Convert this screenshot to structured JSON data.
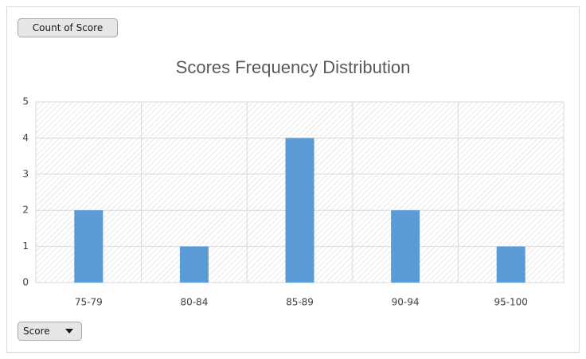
{
  "pivot_buttons": {
    "value_field": "Count of Score",
    "axis_field": "Score"
  },
  "chart_data": {
    "type": "bar",
    "title": "Scores Frequency Distribution",
    "categories": [
      "75-79",
      "80-84",
      "85-89",
      "90-94",
      "95-100"
    ],
    "values": [
      2,
      1,
      4,
      2,
      1
    ],
    "color": "#5b9bd5",
    "ylim": [
      0,
      5
    ],
    "yticks": [
      0,
      1,
      2,
      3,
      4,
      5
    ],
    "grid": true
  }
}
